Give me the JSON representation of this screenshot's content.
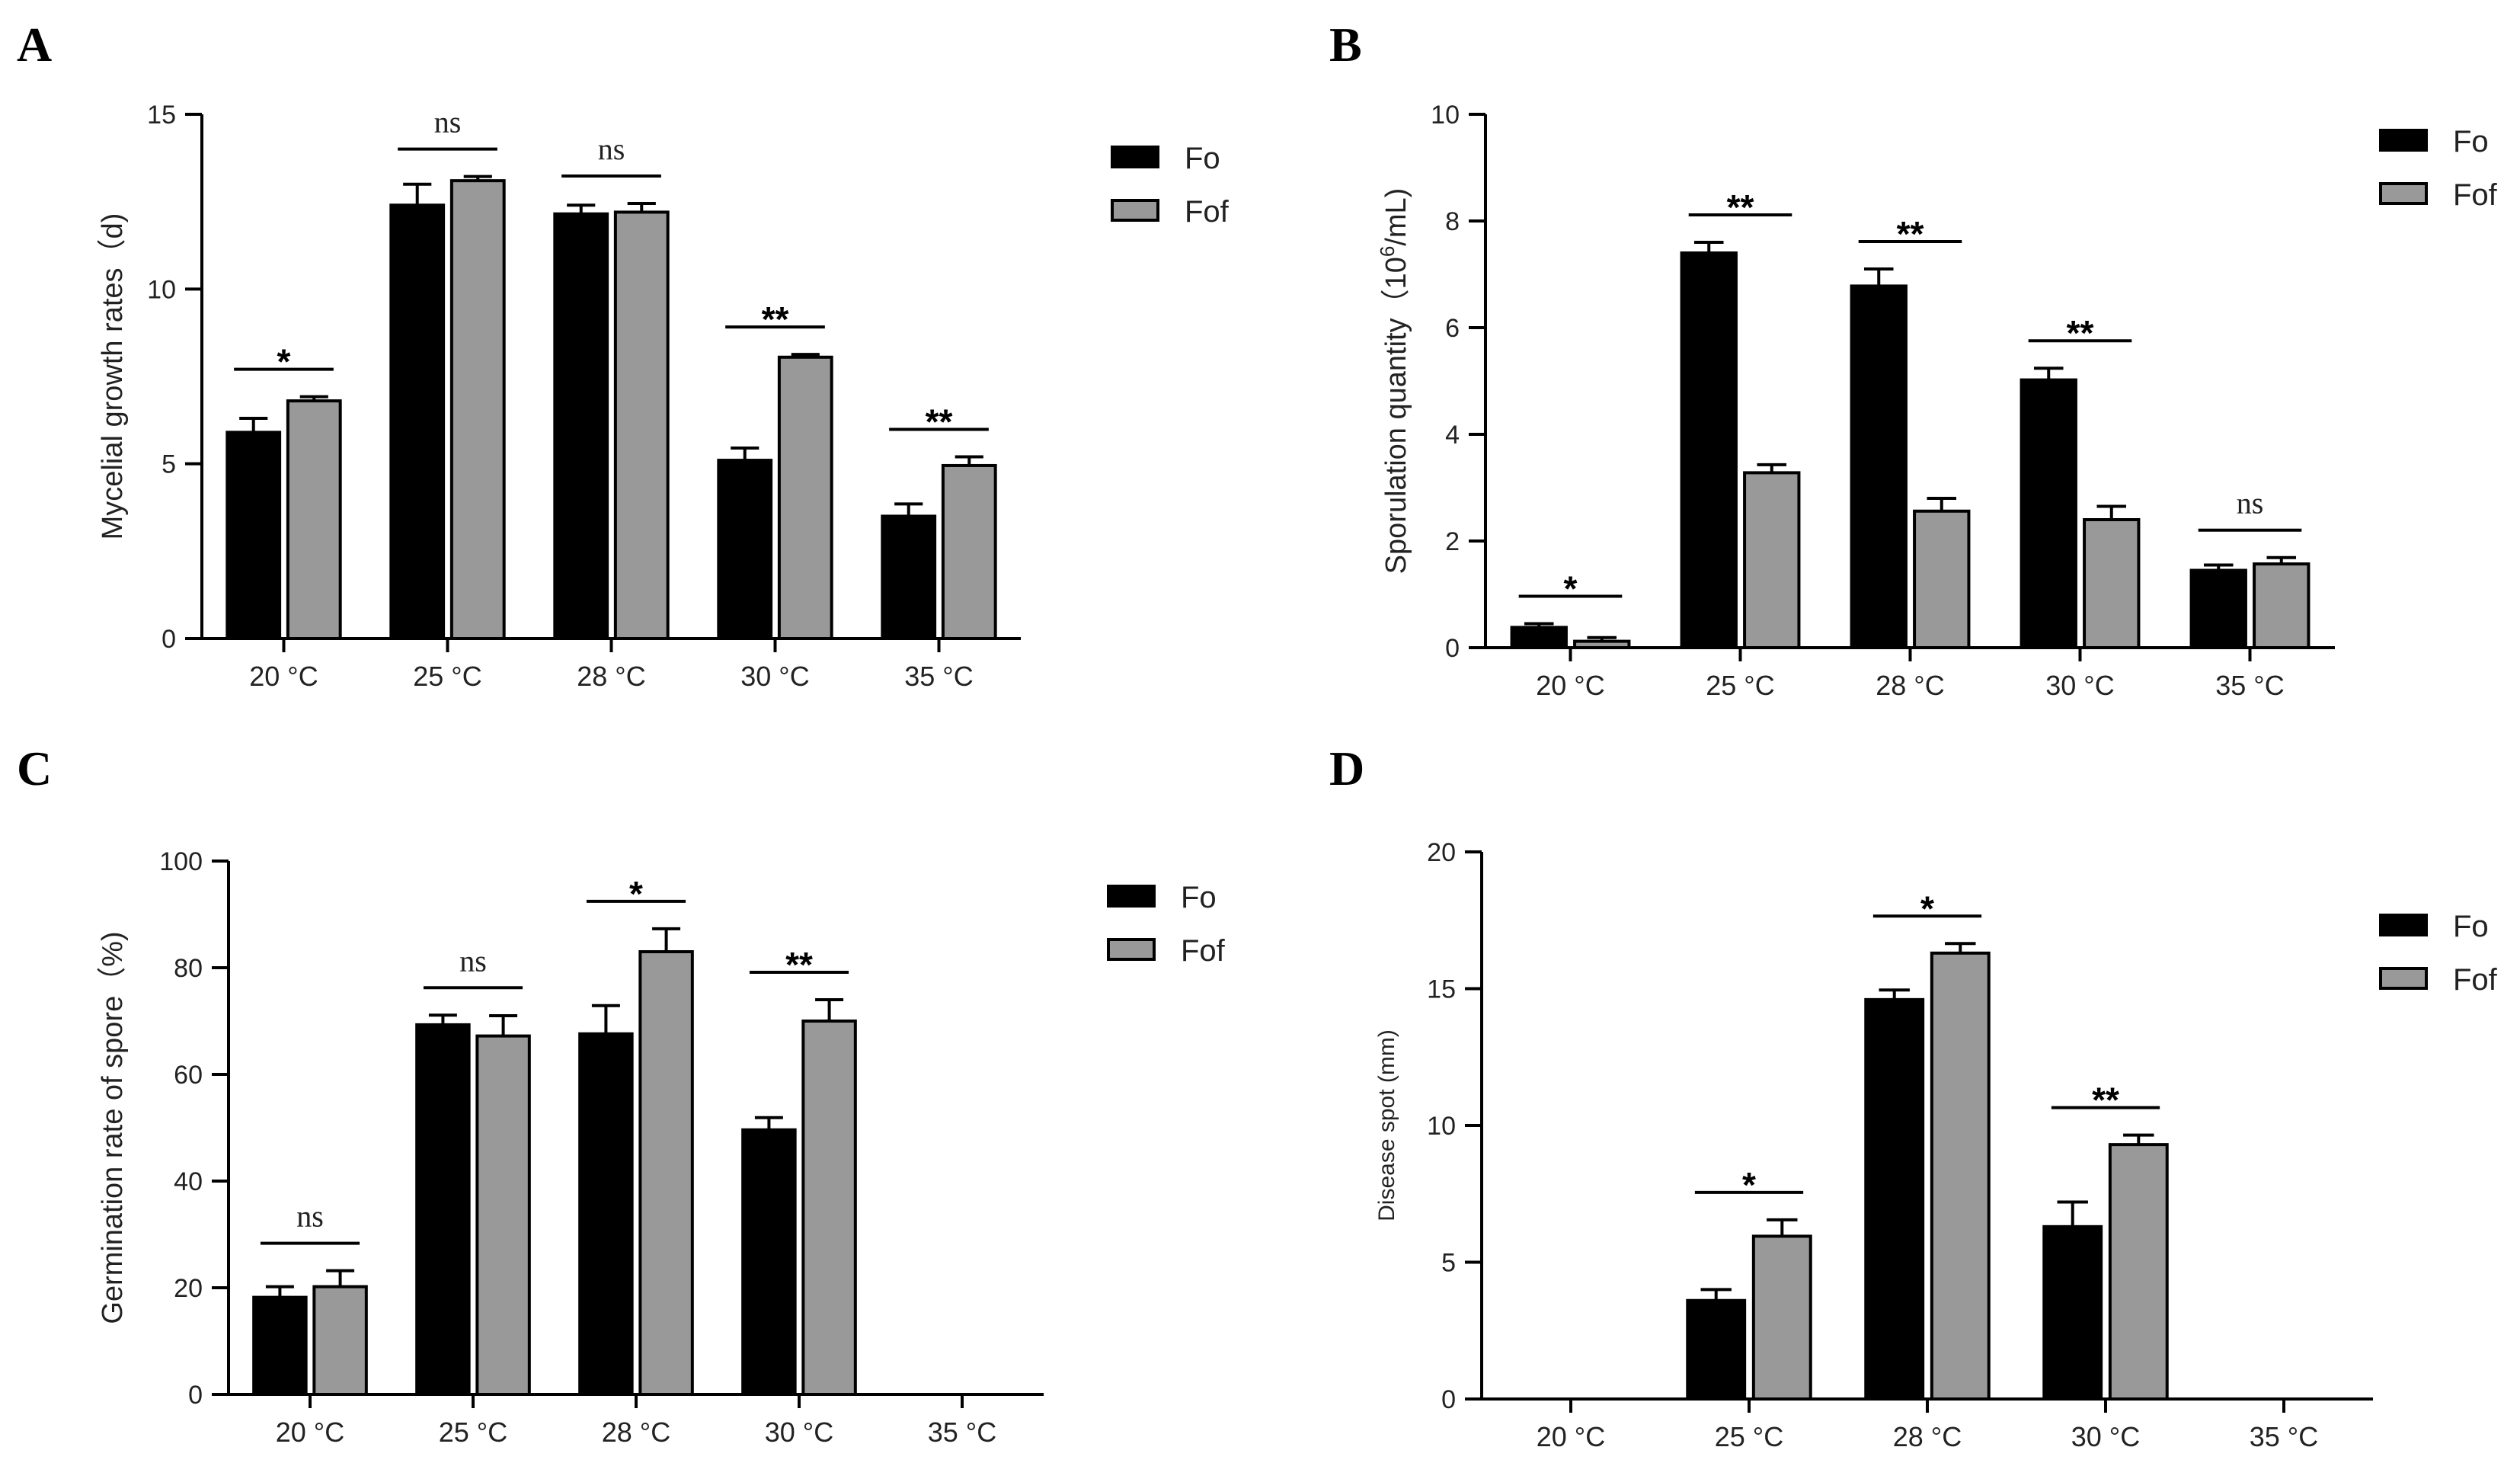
{
  "colors": {
    "Fo": "#000000",
    "Fof": "#999999"
  },
  "chart_data": [
    {
      "panel": "A",
      "type": "bar",
      "categories": [
        "20 °C",
        "25 °C",
        "28 °C",
        "30 °C",
        "35 °C"
      ],
      "series": [
        {
          "name": "Fo",
          "values": [
            5.9,
            12.4,
            12.15,
            5.1,
            3.5
          ],
          "errors": [
            0.4,
            0.6,
            0.25,
            0.35,
            0.35
          ]
        },
        {
          "name": "Fof",
          "values": [
            6.8,
            13.1,
            12.2,
            8.05,
            4.95
          ],
          "errors": [
            0.12,
            0.12,
            0.25,
            0.08,
            0.25
          ]
        }
      ],
      "significance": [
        "*",
        "ns",
        "ns",
        "**",
        "**"
      ],
      "ylabel": "Mycelial growth rates（d)",
      "ylim": [
        0,
        15
      ],
      "yticks": [
        0,
        5,
        10,
        15
      ],
      "legend": [
        "Fo",
        "Fof"
      ],
      "legend_position": "top-right"
    },
    {
      "panel": "B",
      "type": "bar",
      "categories": [
        "20 °C",
        "25 °C",
        "28 °C",
        "30 °C",
        "35 °C"
      ],
      "series": [
        {
          "name": "Fo",
          "values": [
            0.38,
            7.4,
            6.78,
            5.02,
            1.45
          ],
          "errors": [
            0.07,
            0.2,
            0.32,
            0.22,
            0.1
          ]
        },
        {
          "name": "Fof",
          "values": [
            0.12,
            3.28,
            2.56,
            2.4,
            1.57
          ],
          "errors": [
            0.07,
            0.15,
            0.24,
            0.25,
            0.12
          ]
        }
      ],
      "significance": [
        "*",
        "**",
        "**",
        "**",
        "ns"
      ],
      "ylabel_pre": "Sporulation quantity（10",
      "ylabel_sup": "6",
      "ylabel_post": "/mL)",
      "ylim": [
        0,
        10
      ],
      "yticks": [
        0,
        2,
        4,
        6,
        8,
        10
      ],
      "legend": [
        "Fo",
        "Fof"
      ],
      "legend_position": "top-right"
    },
    {
      "panel": "C",
      "type": "bar",
      "categories": [
        "20 °C",
        "25 °C",
        "28 °C",
        "30 °C",
        "35 °C"
      ],
      "series": [
        {
          "name": "Fo",
          "values": [
            18.2,
            69.3,
            67.6,
            49.6,
            null
          ],
          "errors": [
            2.0,
            1.8,
            5.3,
            2.3,
            null
          ]
        },
        {
          "name": "Fof",
          "values": [
            20.2,
            67.2,
            83.0,
            70.0,
            null
          ],
          "errors": [
            3.0,
            3.8,
            4.3,
            4.0,
            null
          ]
        }
      ],
      "significance": [
        "ns",
        "ns",
        "*",
        "**",
        ""
      ],
      "ylabel": "Germination rate of spore（%)",
      "ylim": [
        0,
        100
      ],
      "yticks": [
        0,
        20,
        40,
        60,
        80,
        100
      ],
      "legend": [
        "Fo",
        "Fof"
      ],
      "legend_position": "top-right"
    },
    {
      "panel": "D",
      "type": "bar",
      "categories": [
        "20 °C",
        "25 °C",
        "28 °C",
        "30 °C",
        "35 °C"
      ],
      "series": [
        {
          "name": "Fo",
          "values": [
            null,
            3.6,
            14.6,
            6.3,
            null
          ],
          "errors": [
            null,
            0.4,
            0.35,
            0.9,
            null
          ]
        },
        {
          "name": "Fof",
          "values": [
            null,
            5.95,
            16.3,
            9.3,
            null
          ],
          "errors": [
            null,
            0.6,
            0.35,
            0.35,
            null
          ]
        }
      ],
      "significance": [
        "",
        "*",
        "*",
        "**",
        ""
      ],
      "ylabel": "Disease spot (mm)",
      "ylim": [
        0,
        20
      ],
      "yticks": [
        0,
        5,
        10,
        15,
        20
      ],
      "legend": [
        "Fo",
        "Fof"
      ],
      "legend_position": "top-right"
    }
  ]
}
